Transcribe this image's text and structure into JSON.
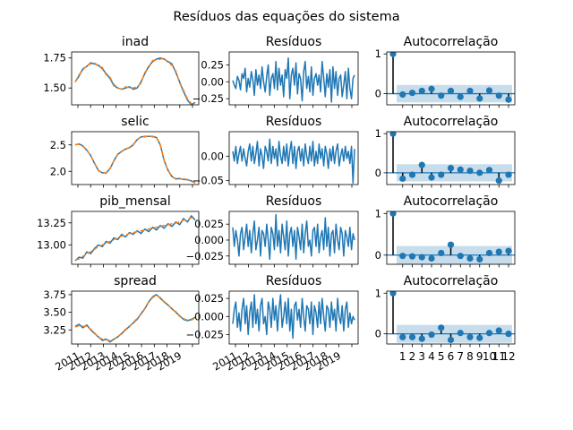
{
  "figure": {
    "title": "Resíduos das equações do sistema",
    "years": [
      "2011",
      "2012",
      "2013",
      "2014",
      "2015",
      "2016",
      "2017",
      "2018",
      "2019"
    ],
    "lag_ticks": [
      "1",
      "2",
      "3",
      "4",
      "5",
      "6",
      "7",
      "8",
      "9",
      "10",
      "11",
      "12"
    ]
  },
  "colors": {
    "series": "#1f77b4",
    "fitted": "#ff7f0e",
    "band": "#1f77b4",
    "stem": "#000000"
  },
  "chart_data": [
    {
      "type": "line",
      "title": "inad",
      "row": 0,
      "kind": "series",
      "x_range": [
        "2011-01",
        "2019-12"
      ],
      "yticks": [
        1.5,
        1.75
      ],
      "ytick_labels": [
        "1.50",
        "1.75"
      ],
      "ylim": [
        1.36,
        1.8
      ],
      "series": [
        {
          "color": "series",
          "values": [
            1.55,
            1.6,
            1.66,
            1.68,
            1.71,
            1.7,
            1.69,
            1.66,
            1.62,
            1.58,
            1.52,
            1.5,
            1.49,
            1.5,
            1.51,
            1.49,
            1.5,
            1.55,
            1.62,
            1.68,
            1.72,
            1.74,
            1.75,
            1.74,
            1.72,
            1.7,
            1.63,
            1.55,
            1.47,
            1.4,
            1.36,
            1.38
          ]
        },
        {
          "color": "fitted",
          "dashed": true,
          "values": [
            1.55,
            1.61,
            1.65,
            1.69,
            1.7,
            1.71,
            1.68,
            1.67,
            1.61,
            1.59,
            1.53,
            1.5,
            1.49,
            1.51,
            1.5,
            1.5,
            1.51,
            1.54,
            1.63,
            1.67,
            1.73,
            1.73,
            1.74,
            1.75,
            1.71,
            1.69,
            1.64,
            1.54,
            1.48,
            1.41,
            1.37,
            1.37
          ]
        }
      ]
    },
    {
      "type": "line",
      "title": "Resíduos",
      "row": 0,
      "kind": "resid",
      "yticks": [
        -0.25,
        0.0,
        0.25
      ],
      "ytick_labels": [
        "−0.25",
        "0.00",
        "0.25"
      ],
      "ylim": [
        -0.34,
        0.44
      ],
      "values": [
        0.02,
        -0.05,
        -0.1,
        0.08,
        0.02,
        -0.12,
        0.12,
        0.05,
        0.2,
        -0.15,
        0.05,
        -0.08,
        0.15,
        0.03,
        -0.2,
        0.18,
        -0.05,
        0.1,
        -0.1,
        0.22,
        0.0,
        -0.15,
        0.08,
        0.25,
        -0.2,
        0.05,
        0.12,
        -0.1,
        0.3,
        -0.12,
        0.2,
        -0.05,
        0.1,
        -0.22,
        0.18,
        0.05,
        0.35,
        -0.25,
        0.1,
        0.2,
        -0.05,
        0.28,
        -0.18,
        0.12,
        0.05,
        -0.28,
        0.15,
        0.3,
        -0.1,
        0.08,
        -0.15,
        0.22,
        -0.2,
        0.05,
        0.12,
        -0.05,
        0.1,
        -0.15,
        0.3,
        0.05,
        -0.22,
        0.12,
        -0.08,
        0.18,
        -0.3,
        0.22,
        -0.1,
        0.15,
        -0.2,
        0.05,
        0.1,
        -0.22,
        -0.05,
        0.15,
        -0.25,
        0.2,
        -0.1,
        -0.25,
        0.05,
        0.1
      ]
    },
    {
      "type": "bar",
      "title": "Autocorrelação",
      "row": 0,
      "kind": "acf",
      "yticks": [
        0,
        1
      ],
      "ytick_labels": [
        "0",
        "1"
      ],
      "ylim": [
        -0.28,
        1.05
      ],
      "band": 0.22,
      "values": [
        1.0,
        -0.02,
        0.02,
        0.07,
        0.12,
        -0.05,
        0.07,
        -0.08,
        0.07,
        -0.12,
        0.08,
        -0.05,
        -0.15
      ]
    },
    {
      "type": "line",
      "title": "selic",
      "row": 1,
      "kind": "series",
      "x_range": [
        "2011-01",
        "2019-12"
      ],
      "yticks": [
        2.0,
        2.5
      ],
      "ytick_labels": [
        "2.0",
        "2.5"
      ],
      "ylim": [
        1.75,
        2.75
      ],
      "series": [
        {
          "color": "series",
          "values": [
            2.5,
            2.52,
            2.48,
            2.4,
            2.3,
            2.15,
            2.02,
            1.97,
            1.97,
            2.05,
            2.2,
            2.32,
            2.38,
            2.42,
            2.45,
            2.5,
            2.6,
            2.65,
            2.66,
            2.66,
            2.66,
            2.64,
            2.5,
            2.2,
            2.02,
            1.9,
            1.86,
            1.86,
            1.85,
            1.84,
            1.82,
            1.78
          ]
        },
        {
          "color": "fitted",
          "dashed": true,
          "values": [
            2.51,
            2.51,
            2.47,
            2.41,
            2.29,
            2.16,
            2.01,
            1.98,
            1.96,
            2.06,
            2.19,
            2.33,
            2.37,
            2.43,
            2.44,
            2.51,
            2.59,
            2.66,
            2.65,
            2.67,
            2.65,
            2.65,
            2.49,
            2.21,
            2.01,
            1.91,
            1.85,
            1.87,
            1.84,
            1.85,
            1.81,
            1.79
          ]
        }
      ]
    },
    {
      "type": "line",
      "title": "Resíduos",
      "row": 1,
      "kind": "resid",
      "yticks": [
        -0.05,
        0.0
      ],
      "ytick_labels": [
        "−0.05",
        "0.00"
      ],
      "ylim": [
        -0.058,
        0.05
      ],
      "values": [
        0.01,
        -0.01,
        0.02,
        -0.015,
        0.005,
        0.02,
        -0.01,
        0.015,
        -0.005,
        -0.02,
        0.01,
        0.025,
        -0.01,
        0.02,
        -0.015,
        0.005,
        0.03,
        -0.02,
        0.015,
        0.0,
        -0.025,
        0.02,
        0.01,
        -0.01,
        0.035,
        -0.015,
        0.02,
        -0.005,
        0.015,
        -0.02,
        0.03,
        0.0,
        -0.015,
        0.02,
        -0.01,
        0.025,
        -0.02,
        0.01,
        0.03,
        -0.015,
        0.02,
        -0.025,
        0.01,
        0.02,
        -0.01,
        0.015,
        -0.02,
        0.025,
        0.0,
        -0.015,
        0.02,
        -0.01,
        0.03,
        -0.02,
        0.01,
        -0.015,
        0.025,
        -0.005,
        0.015,
        -0.02,
        0.02,
        0.005,
        -0.025,
        0.015,
        -0.01,
        0.02,
        -0.015,
        0.01,
        0.025,
        -0.02,
        0.0,
        0.015,
        -0.01,
        0.02,
        -0.005,
        0.01,
        -0.015,
        0.02,
        -0.055,
        0.015
      ]
    },
    {
      "type": "bar",
      "title": "Autocorrelação",
      "row": 1,
      "kind": "acf",
      "yticks": [
        0,
        1
      ],
      "ytick_labels": [
        "0",
        "1"
      ],
      "ylim": [
        -0.3,
        1.05
      ],
      "band": 0.22,
      "values": [
        1.0,
        -0.15,
        -0.05,
        0.2,
        -0.12,
        -0.05,
        0.12,
        0.08,
        0.05,
        0.0,
        0.07,
        -0.2,
        -0.05
      ]
    },
    {
      "type": "line",
      "title": "pib_mensal",
      "row": 2,
      "kind": "series",
      "x_range": [
        "2011-01",
        "2019-12"
      ],
      "yticks": [
        13.0,
        13.25
      ],
      "ytick_labels": [
        "13.00",
        "13.25"
      ],
      "ylim": [
        12.78,
        13.38
      ],
      "series": [
        {
          "color": "series",
          "values": [
            12.82,
            12.86,
            12.85,
            12.92,
            12.9,
            12.96,
            13.0,
            12.98,
            13.04,
            13.02,
            13.08,
            13.06,
            13.12,
            13.09,
            13.14,
            13.12,
            13.16,
            13.13,
            13.18,
            13.15,
            13.2,
            13.17,
            13.22,
            13.19,
            13.24,
            13.21,
            13.26,
            13.23,
            13.3,
            13.26,
            13.33,
            13.28
          ]
        },
        {
          "color": "fitted",
          "dashed": true,
          "values": [
            12.83,
            12.84,
            12.87,
            12.9,
            12.92,
            12.95,
            12.98,
            13.0,
            13.02,
            13.04,
            13.06,
            13.08,
            13.1,
            13.11,
            13.13,
            13.14,
            13.15,
            13.16,
            13.17,
            13.18,
            13.19,
            13.2,
            13.21,
            13.22,
            13.23,
            13.24,
            13.25,
            13.26,
            13.28,
            13.29,
            13.31,
            13.3
          ]
        }
      ]
    },
    {
      "type": "line",
      "title": "Resíduos",
      "row": 2,
      "kind": "resid",
      "yticks": [
        -0.025,
        0.0,
        0.025
      ],
      "ytick_labels": [
        "−0.025",
        "0.000",
        "0.025"
      ],
      "ylim": [
        -0.038,
        0.045
      ],
      "values": [
        0.02,
        -0.01,
        0.015,
        0.0,
        -0.025,
        0.01,
        0.02,
        -0.015,
        0.005,
        0.025,
        -0.01,
        0.015,
        -0.02,
        0.01,
        0.03,
        -0.015,
        0.0,
        0.02,
        -0.025,
        0.015,
        0.01,
        -0.01,
        0.025,
        0.0,
        -0.03,
        0.02,
        0.01,
        -0.015,
        0.04,
        -0.01,
        0.015,
        -0.02,
        0.025,
        0.005,
        -0.015,
        0.03,
        -0.025,
        0.01,
        0.02,
        -0.01,
        0.015,
        -0.03,
        0.02,
        0.005,
        -0.015,
        0.025,
        -0.02,
        0.01,
        0.03,
        -0.01,
        0.0,
        -0.025,
        0.015,
        0.02,
        -0.01,
        0.025,
        -0.02,
        0.005,
        0.015,
        -0.015,
        0.035,
        -0.01,
        0.02,
        -0.025,
        0.01,
        0.015,
        -0.02,
        0.025,
        0.0,
        -0.015,
        0.02,
        0.01,
        -0.025,
        0.015,
        0.005,
        -0.01,
        0.02,
        -0.015,
        0.01,
        0.0
      ]
    },
    {
      "type": "bar",
      "title": "Autocorrelação",
      "row": 2,
      "kind": "acf",
      "yticks": [
        0,
        1
      ],
      "ytick_labels": [
        "0",
        "1"
      ],
      "ylim": [
        -0.22,
        1.05
      ],
      "band": 0.22,
      "values": [
        1.0,
        -0.02,
        -0.03,
        -0.05,
        -0.08,
        0.05,
        0.25,
        -0.02,
        -0.08,
        -0.1,
        0.05,
        0.08,
        0.1
      ]
    },
    {
      "type": "line",
      "title": "spread",
      "row": 3,
      "kind": "series",
      "x_range": [
        "2011-01",
        "2019-12"
      ],
      "yticks": [
        3.25,
        3.5,
        3.75
      ],
      "ytick_labels": [
        "3.25",
        "3.50",
        "3.75"
      ],
      "ylim": [
        3.05,
        3.8
      ],
      "series": [
        {
          "color": "series",
          "values": [
            3.3,
            3.33,
            3.28,
            3.32,
            3.25,
            3.2,
            3.15,
            3.1,
            3.12,
            3.08,
            3.12,
            3.15,
            3.2,
            3.25,
            3.3,
            3.35,
            3.4,
            3.48,
            3.55,
            3.65,
            3.72,
            3.75,
            3.7,
            3.65,
            3.6,
            3.55,
            3.5,
            3.45,
            3.4,
            3.38,
            3.4,
            3.43
          ]
        },
        {
          "color": "fitted",
          "dashed": true,
          "values": [
            3.29,
            3.31,
            3.3,
            3.3,
            3.26,
            3.21,
            3.14,
            3.12,
            3.11,
            3.1,
            3.11,
            3.16,
            3.19,
            3.26,
            3.29,
            3.36,
            3.41,
            3.47,
            3.56,
            3.64,
            3.71,
            3.74,
            3.71,
            3.64,
            3.61,
            3.54,
            3.51,
            3.44,
            3.41,
            3.39,
            3.39,
            3.42
          ]
        }
      ]
    },
    {
      "type": "line",
      "title": "Resíduos",
      "row": 3,
      "kind": "resid",
      "yticks": [
        -0.025,
        0.0,
        0.025
      ],
      "ytick_labels": [
        "−0.025",
        "0.000",
        "0.025"
      ],
      "ylim": [
        -0.038,
        0.035
      ],
      "values": [
        -0.01,
        0.01,
        0.02,
        -0.015,
        0.005,
        -0.02,
        0.01,
        0.025,
        -0.01,
        0.015,
        -0.025,
        0.005,
        0.02,
        -0.015,
        0.03,
        -0.01,
        0.01,
        -0.02,
        0.015,
        0.025,
        -0.01,
        0.0,
        -0.025,
        0.02,
        0.01,
        -0.015,
        0.025,
        -0.005,
        0.015,
        -0.02,
        0.01,
        0.03,
        -0.015,
        0.0,
        0.02,
        -0.01,
        0.025,
        -0.02,
        0.01,
        -0.03,
        0.015,
        0.02,
        -0.005,
        0.01,
        -0.015,
        0.025,
        0.0,
        -0.02,
        0.015,
        0.01,
        -0.01,
        0.02,
        -0.025,
        0.015,
        0.005,
        -0.015,
        0.02,
        -0.01,
        0.025,
        0.0,
        -0.02,
        0.015,
        0.01,
        -0.015,
        0.02,
        -0.005,
        0.01,
        -0.02,
        0.025,
        0.0,
        -0.01,
        0.015,
        -0.02,
        0.01,
        0.02,
        -0.015,
        0.005,
        -0.01,
        0.0,
        -0.005
      ]
    },
    {
      "type": "bar",
      "title": "Autocorrelação",
      "row": 3,
      "kind": "acf",
      "yticks": [
        0,
        1
      ],
      "ytick_labels": [
        "0",
        "1"
      ],
      "ylim": [
        -0.25,
        1.05
      ],
      "band": 0.22,
      "values": [
        1.0,
        -0.08,
        -0.08,
        -0.12,
        -0.02,
        0.15,
        -0.15,
        0.02,
        -0.08,
        -0.1,
        0.02,
        0.08,
        0.0
      ]
    }
  ]
}
